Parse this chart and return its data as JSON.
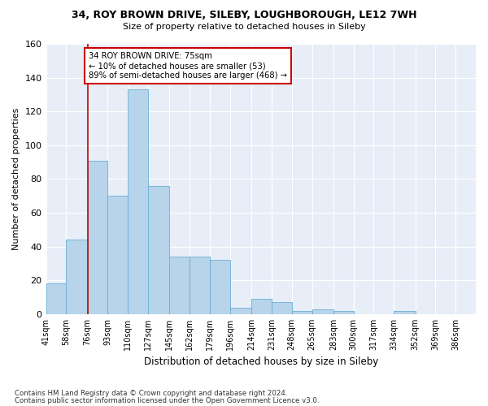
{
  "title1": "34, ROY BROWN DRIVE, SILEBY, LOUGHBOROUGH, LE12 7WH",
  "title2": "Size of property relative to detached houses in Sileby",
  "xlabel": "Distribution of detached houses by size in Sileby",
  "ylabel": "Number of detached properties",
  "bin_edges": [
    41,
    58,
    76,
    93,
    110,
    127,
    145,
    162,
    179,
    196,
    214,
    231,
    248,
    265,
    283,
    300,
    317,
    334,
    352,
    369,
    386
  ],
  "bar_heights": [
    18,
    44,
    91,
    70,
    133,
    76,
    34,
    34,
    32,
    4,
    9,
    7,
    2,
    3,
    2,
    0,
    0,
    2,
    0,
    0
  ],
  "bar_color": "#b8d4ea",
  "bar_edgecolor": "#6aaed6",
  "background_color": "#e8eef8",
  "grid_color": "#ffffff",
  "red_line_x": 76,
  "annotation_text": "34 ROY BROWN DRIVE: 75sqm\n← 10% of detached houses are smaller (53)\n89% of semi-detached houses are larger (468) →",
  "annotation_box_color": "#ffffff",
  "annotation_box_edgecolor": "#cc0000",
  "ylim": [
    0,
    160
  ],
  "yticks": [
    0,
    20,
    40,
    60,
    80,
    100,
    120,
    140,
    160
  ],
  "footer1": "Contains HM Land Registry data © Crown copyright and database right 2024.",
  "footer2": "Contains public sector information licensed under the Open Government Licence v3.0."
}
